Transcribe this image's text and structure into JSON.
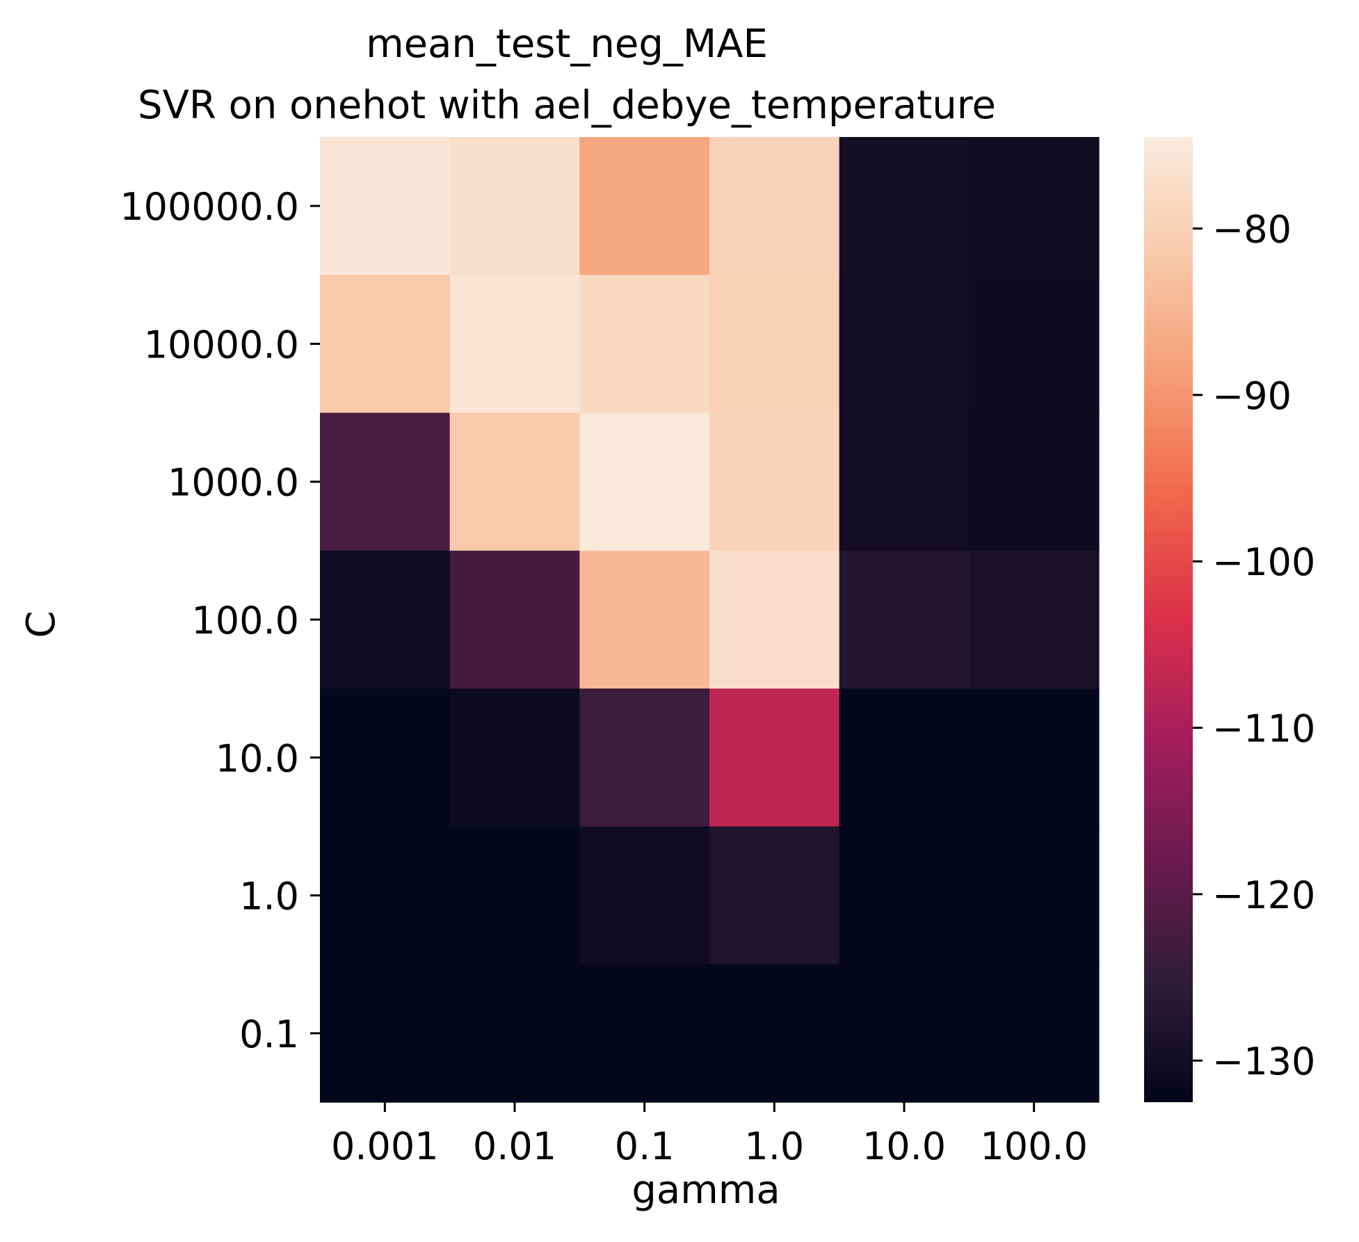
{
  "chart_data": {
    "type": "heatmap",
    "title": "mean_test_neg_MAE",
    "subtitle": "SVR on onehot with ael_debye_temperature",
    "xlabel": "gamma",
    "ylabel": "C",
    "x_categories": [
      "0.001",
      "0.01",
      "0.1",
      "1.0",
      "10.0",
      "100.0"
    ],
    "y_categories": [
      "100000.0",
      "10000.0",
      "1000.0",
      "100.0",
      "10.0",
      "1.0",
      "0.1"
    ],
    "values": [
      [
        -75.5,
        -76.8,
        -87.5,
        -79.5,
        -129.5,
        -130.5
      ],
      [
        -81.5,
        -75.8,
        -78.2,
        -80.0,
        -130.0,
        -130.8
      ],
      [
        -122.0,
        -81.5,
        -75.0,
        -79.5,
        -130.0,
        -131.0
      ],
      [
        -130.5,
        -122.5,
        -84.5,
        -77.0,
        -127.5,
        -128.5
      ],
      [
        -132.0,
        -131.0,
        -123.5,
        -107.0,
        -132.0,
        -132.0
      ],
      [
        -132.0,
        -132.0,
        -130.5,
        -128.0,
        -132.0,
        -132.0
      ],
      [
        -132.0,
        -132.0,
        -132.0,
        -132.0,
        -132.0,
        -132.0
      ]
    ],
    "colorbar": {
      "min": -132.5,
      "max": -74.5,
      "ticks": [
        -80,
        -90,
        -100,
        -110,
        -120,
        -130
      ],
      "tick_labels": [
        "−80",
        "−90",
        "−100",
        "−110",
        "−120",
        "−130"
      ],
      "colormap": "rocket",
      "colormap_stops": [
        "#03051a",
        "#2f1d37",
        "#6a1a4e",
        "#a41d5c",
        "#db2f4a",
        "#f1654b",
        "#f59d75",
        "#f8c8a9",
        "#faebdd"
      ]
    },
    "grid": false,
    "legend": "colorbar-right"
  }
}
